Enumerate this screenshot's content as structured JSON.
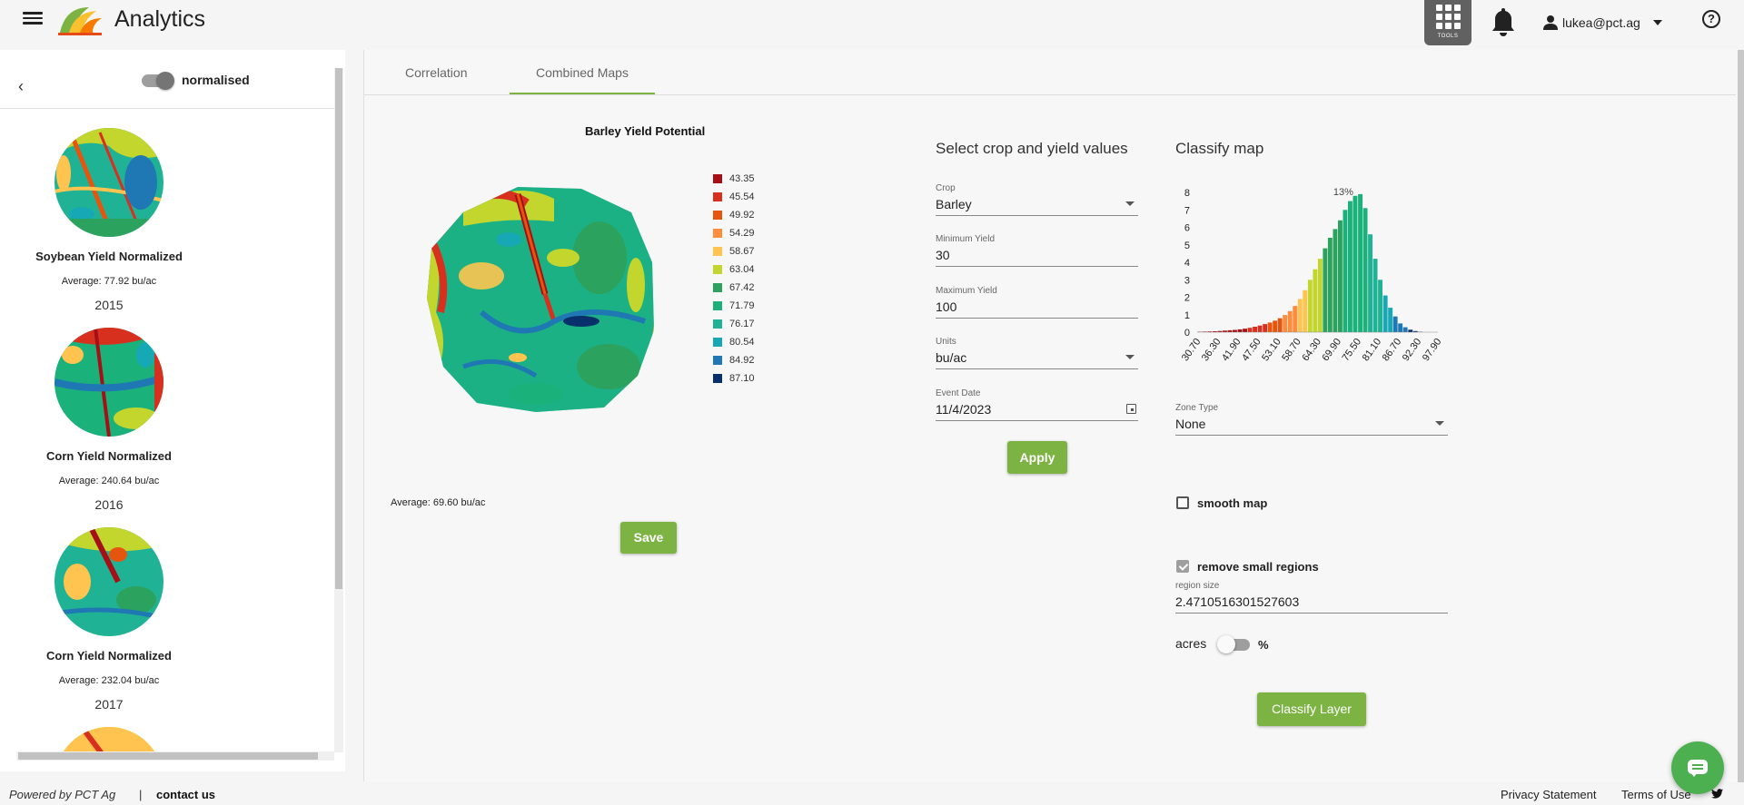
{
  "header": {
    "app_title": "Analytics",
    "tools_label": "TOOLS",
    "user_email": "lukea@pct.ag",
    "help_symbol": "?"
  },
  "sidebar": {
    "back_symbol": "‹",
    "normalised_label": "normalised",
    "items": [
      {
        "name": "Soybean Yield Normalized",
        "average": "Average: 77.92 bu/ac",
        "year": "2015"
      },
      {
        "name": "Corn Yield Normalized",
        "average": "Average: 240.64 bu/ac",
        "year": "2016"
      },
      {
        "name": "Corn Yield Normalized",
        "average": "Average: 232.04 bu/ac",
        "year": "2017"
      }
    ]
  },
  "tabs": [
    {
      "label": "Correlation",
      "active": false
    },
    {
      "label": "Combined Maps",
      "active": true
    }
  ],
  "map_panel": {
    "title": "Barley Yield Potential",
    "legend": [
      {
        "value": "43.35",
        "color": "#a50f15"
      },
      {
        "value": "45.54",
        "color": "#d7301f"
      },
      {
        "value": "49.92",
        "color": "#e6550d"
      },
      {
        "value": "54.29",
        "color": "#fd8d3c"
      },
      {
        "value": "58.67",
        "color": "#fec44f"
      },
      {
        "value": "63.04",
        "color": "#c2d62e"
      },
      {
        "value": "67.42",
        "color": "#2ca25f"
      },
      {
        "value": "71.79",
        "color": "#1ab17a"
      },
      {
        "value": "76.17",
        "color": "#20b294"
      },
      {
        "value": "80.54",
        "color": "#16a9b5"
      },
      {
        "value": "84.92",
        "color": "#1f78b4"
      },
      {
        "value": "87.10",
        "color": "#08306b"
      }
    ],
    "average": "Average: 69.60 bu/ac",
    "save_label": "Save"
  },
  "crop_panel": {
    "title": "Select crop and yield values",
    "crop": {
      "label": "Crop",
      "value": "Barley"
    },
    "min_yield": {
      "label": "Minimum Yield",
      "value": "30"
    },
    "max_yield": {
      "label": "Maximum Yield",
      "value": "100"
    },
    "units": {
      "label": "Units",
      "value": "bu/ac"
    },
    "event_date": {
      "label": "Event Date",
      "value": "11/4/2023"
    },
    "apply_label": "Apply"
  },
  "classify_panel": {
    "title": "Classify map",
    "zone_type": {
      "label": "Zone Type",
      "value": "None"
    },
    "smooth_label": "smooth map",
    "smooth_checked": false,
    "remove_label": "remove small regions",
    "remove_checked": true,
    "region_size": {
      "label": "region size",
      "value": "2.4710516301527603"
    },
    "acres_label": "acres",
    "percent_label": "%",
    "classify_label": "Classify Layer"
  },
  "chart_data": {
    "type": "bar",
    "annotation": "13%",
    "ylim": [
      0,
      8
    ],
    "yticks": [
      0,
      1,
      2,
      3,
      4,
      5,
      6,
      7,
      8
    ],
    "xticks": [
      "30.70",
      "36.30",
      "41.90",
      "47.50",
      "53.10",
      "58.70",
      "64.30",
      "69.90",
      "75.50",
      "81.10",
      "86.70",
      "92.30",
      "97.90"
    ],
    "x_range": [
      30.7,
      97.9
    ],
    "bins": [
      {
        "x": 31.5,
        "value": 0.02
      },
      {
        "x": 32.9,
        "value": 0.03
      },
      {
        "x": 34.3,
        "value": 0.04
      },
      {
        "x": 35.7,
        "value": 0.05
      },
      {
        "x": 37.1,
        "value": 0.07
      },
      {
        "x": 38.5,
        "value": 0.09
      },
      {
        "x": 39.9,
        "value": 0.11
      },
      {
        "x": 41.3,
        "value": 0.13
      },
      {
        "x": 42.7,
        "value": 0.16
      },
      {
        "x": 44.1,
        "value": 0.2
      },
      {
        "x": 45.5,
        "value": 0.25
      },
      {
        "x": 46.9,
        "value": 0.31
      },
      {
        "x": 48.3,
        "value": 0.38
      },
      {
        "x": 49.7,
        "value": 0.46
      },
      {
        "x": 51.1,
        "value": 0.55
      },
      {
        "x": 52.5,
        "value": 0.66
      },
      {
        "x": 53.9,
        "value": 0.8
      },
      {
        "x": 55.3,
        "value": 0.98
      },
      {
        "x": 56.7,
        "value": 1.2
      },
      {
        "x": 58.1,
        "value": 1.5
      },
      {
        "x": 59.5,
        "value": 1.9
      },
      {
        "x": 60.9,
        "value": 2.4
      },
      {
        "x": 62.3,
        "value": 3.0
      },
      {
        "x": 63.7,
        "value": 3.6
      },
      {
        "x": 65.1,
        "value": 4.2
      },
      {
        "x": 66.5,
        "value": 4.8
      },
      {
        "x": 67.9,
        "value": 5.4
      },
      {
        "x": 69.3,
        "value": 5.9
      },
      {
        "x": 70.7,
        "value": 6.4
      },
      {
        "x": 72.1,
        "value": 7.0
      },
      {
        "x": 73.5,
        "value": 7.5
      },
      {
        "x": 74.9,
        "value": 7.8
      },
      {
        "x": 76.3,
        "value": 7.9
      },
      {
        "x": 77.7,
        "value": 7.1
      },
      {
        "x": 79.1,
        "value": 5.6
      },
      {
        "x": 80.5,
        "value": 4.2
      },
      {
        "x": 81.9,
        "value": 3.0
      },
      {
        "x": 83.3,
        "value": 2.1
      },
      {
        "x": 84.7,
        "value": 1.4
      },
      {
        "x": 86.1,
        "value": 0.9
      },
      {
        "x": 87.5,
        "value": 0.5
      },
      {
        "x": 88.9,
        "value": 0.28
      },
      {
        "x": 90.3,
        "value": 0.14
      },
      {
        "x": 91.7,
        "value": 0.06
      },
      {
        "x": 93.1,
        "value": 0.02
      }
    ]
  },
  "footer": {
    "powered_by": "Powered by PCT Ag",
    "separator": "|",
    "contact_label": "contact us",
    "privacy_label": "Privacy Statement",
    "terms_label": "Terms of Use"
  }
}
